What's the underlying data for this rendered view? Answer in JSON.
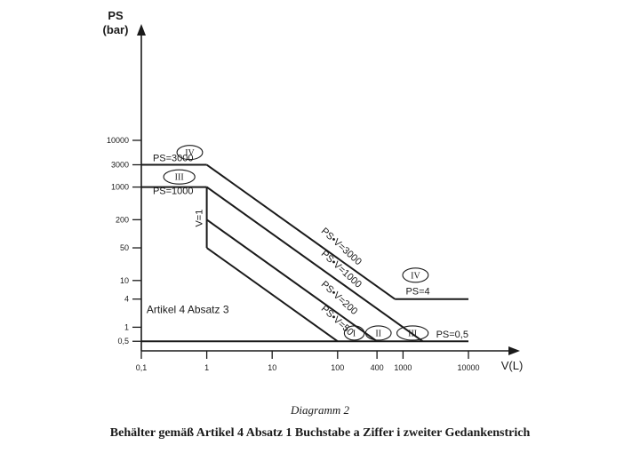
{
  "caption": {
    "number": "Diagramm 2",
    "title": "Behälter gemäß Artikel 4 Absatz 1 Buchstabe a Ziffer i zweiter Gedankenstrich"
  },
  "chart_data": {
    "type": "line",
    "scale": "log-log",
    "grid": false,
    "ylabel": [
      "PS",
      "(bar)"
    ],
    "xlabel": "V(L)",
    "xlim": [
      0.1,
      20000
    ],
    "ylim": [
      0.1,
      20000
    ],
    "x_ticks": [
      {
        "v": 0.1,
        "label": "0,1"
      },
      {
        "v": 1,
        "label": "1"
      },
      {
        "v": 10,
        "label": "10"
      },
      {
        "v": 100,
        "label": "100"
      },
      {
        "v": 400,
        "label": "400"
      },
      {
        "v": 1000,
        "label": "1000"
      },
      {
        "v": 10000,
        "label": "10000"
      }
    ],
    "y_ticks": [
      {
        "v": 0.5,
        "label": "0,5"
      },
      {
        "v": 1,
        "label": "1"
      },
      {
        "v": 4,
        "label": "4"
      },
      {
        "v": 10,
        "label": "10"
      },
      {
        "v": 50,
        "label": "50"
      },
      {
        "v": 200,
        "label": "200"
      },
      {
        "v": 1000,
        "label": "1000"
      },
      {
        "v": 3000,
        "label": "3000"
      },
      {
        "v": 10000,
        "label": "10000"
      }
    ],
    "lines": [
      {
        "label": "PS=3000",
        "points": [
          [
            0.1,
            3000
          ],
          [
            1,
            3000
          ]
        ]
      },
      {
        "label": "PS=1000",
        "points": [
          [
            0.1,
            1000
          ],
          [
            1,
            1000
          ]
        ]
      },
      {
        "label": "PS•V=3000",
        "points": [
          [
            1,
            3000
          ],
          [
            750,
            4
          ]
        ]
      },
      {
        "label": "PS=4",
        "points": [
          [
            750,
            4
          ],
          [
            10000,
            4
          ]
        ]
      },
      {
        "label": "PS•V=1000",
        "points": [
          [
            1,
            1000
          ],
          [
            2000,
            0.5
          ]
        ]
      },
      {
        "label": "V=1",
        "points": [
          [
            1,
            1000
          ],
          [
            1,
            50
          ]
        ]
      },
      {
        "label": "PS•V=200",
        "points": [
          [
            1,
            200
          ],
          [
            400,
            0.5
          ]
        ]
      },
      {
        "label": "PS•V=50",
        "points": [
          [
            1,
            50
          ],
          [
            100,
            0.5
          ]
        ]
      },
      {
        "label": "PS=0,5",
        "points": [
          [
            0.1,
            0.5
          ],
          [
            10000,
            0.5
          ]
        ]
      }
    ],
    "line_labels": [
      {
        "text": "PS=3000",
        "x": 0.15,
        "y": 3600,
        "rotate": 0
      },
      {
        "text": "PS=1000",
        "x": 0.15,
        "y": 700,
        "rotate": 0
      },
      {
        "text": "PS=4",
        "x": 1100,
        "y": 5,
        "rotate": 0
      },
      {
        "text": "PS=0,5",
        "x": 3200,
        "y": 0.6,
        "rotate": 0
      },
      {
        "text": "V=1",
        "x": 0.85,
        "y": 140,
        "rotate": -90
      },
      {
        "text": "PS•V=3000",
        "x": 55,
        "y": 110,
        "rotate": 42
      },
      {
        "text": "PS•V=1000",
        "x": 55,
        "y": 36,
        "rotate": 42
      },
      {
        "text": "PS•V=200",
        "x": 55,
        "y": 8,
        "rotate": 42
      },
      {
        "text": "PS•V=50",
        "x": 55,
        "y": 2.4,
        "rotate": 42
      }
    ],
    "categories": [
      {
        "label": "IV",
        "x": 0.55,
        "y": 5500
      },
      {
        "label": "III",
        "x": 0.38,
        "y": 1650
      },
      {
        "label": "IV",
        "x": 1550,
        "y": 13
      },
      {
        "label": "I",
        "x": 180,
        "y": 0.75
      },
      {
        "label": "II",
        "x": 420,
        "y": 0.75
      },
      {
        "label": "III",
        "x": 1400,
        "y": 0.75
      }
    ],
    "annotations": [
      {
        "text": "Artikel 4 Absatz 3",
        "x": 0.12,
        "y": 2
      }
    ]
  }
}
